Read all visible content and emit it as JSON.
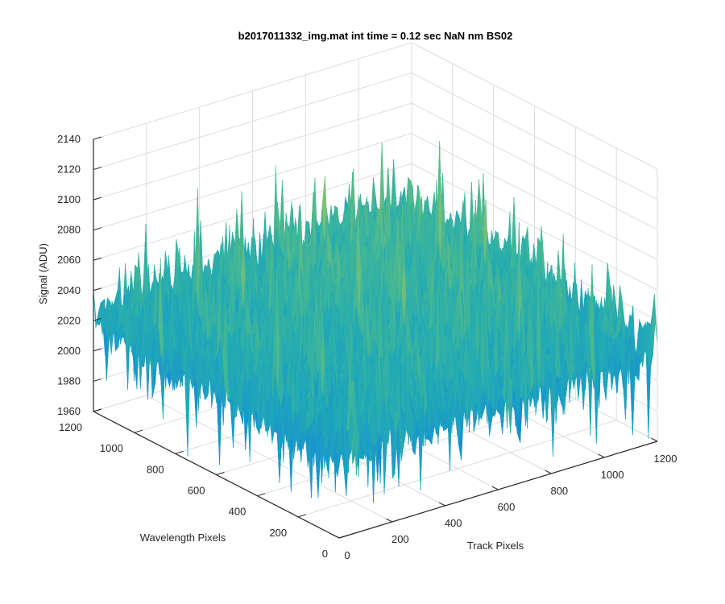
{
  "chart_data": {
    "type": "surface",
    "title": "b2017011332_img.mat int time = 0.12 sec  NaN nm BS02",
    "xlabel": "Track Pixels",
    "ylabel": "Wavelength Pixels",
    "zlabel": "Signal (ADU)",
    "xlim": [
      0,
      1200
    ],
    "ylim": [
      0,
      1200
    ],
    "zlim": [
      1960,
      2140
    ],
    "x_ticks": [
      "0",
      "200",
      "400",
      "600",
      "800",
      "1000",
      "1200"
    ],
    "y_ticks": [
      "0",
      "200",
      "400",
      "600",
      "800",
      "1000",
      "1200"
    ],
    "z_ticks": [
      "1960",
      "1980",
      "2000",
      "2020",
      "2040",
      "2060",
      "2080",
      "2100",
      "2120",
      "2140"
    ],
    "grid": true,
    "colormap": [
      "#1f6fd8",
      "#1696cf",
      "#22aab4",
      "#45b894",
      "#8cc06e",
      "#c8c356",
      "#e6c84a"
    ],
    "surface_levels": {
      "x": [
        0,
        200,
        400,
        600,
        800,
        1000,
        1200
      ],
      "y": [
        0,
        200,
        400,
        600,
        800,
        1000,
        1200
      ],
      "base_z": [
        [
          2016,
          2018,
          2020,
          2022,
          2022,
          2021,
          2020
        ],
        [
          2018,
          2020,
          2022,
          2024,
          2025,
          2024,
          2022
        ],
        [
          2020,
          2022,
          2025,
          2027,
          2028,
          2027,
          2024
        ],
        [
          2021,
          2024,
          2027,
          2030,
          2031,
          2030,
          2026
        ],
        [
          2022,
          2025,
          2028,
          2032,
          2034,
          2033,
          2028
        ],
        [
          2021,
          2024,
          2027,
          2031,
          2034,
          2034,
          2029
        ],
        [
          2020,
          2022,
          2025,
          2029,
          2032,
          2031,
          2027
        ]
      ],
      "noise_amplitude": 45
    }
  }
}
